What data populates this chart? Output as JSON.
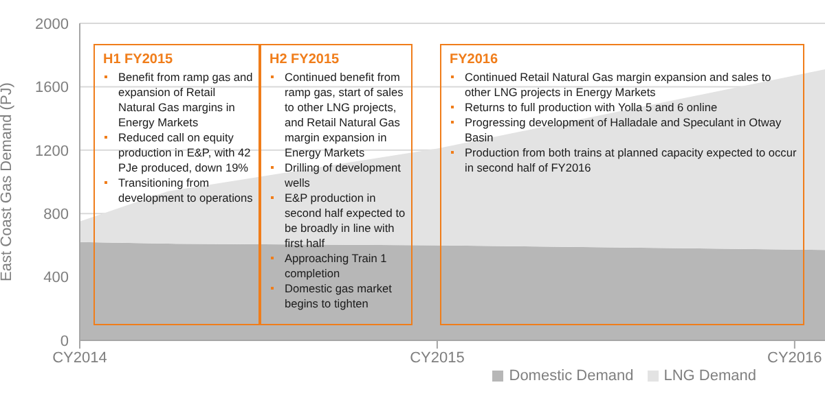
{
  "chart_data": {
    "type": "area",
    "stacked": true,
    "ylabel": "East Coast Gas Demand (PJ)",
    "x": [
      "2014-01",
      "2014-04",
      "2015-01",
      "2016-02"
    ],
    "xlim": [
      "2014-01",
      "2016-02"
    ],
    "xticks": [
      {
        "value": "2014-01",
        "label": "CY2014"
      },
      {
        "value": "2015-01",
        "label": "CY2015"
      },
      {
        "value": "2016-01",
        "label": "CY2016"
      }
    ],
    "ylim": [
      0,
      2000
    ],
    "yticks": [
      0,
      400,
      800,
      1200,
      1600,
      2000
    ],
    "series": [
      {
        "name": "Domestic Demand",
        "color": "#b7b7b7",
        "values": [
          620,
          610,
          600,
          570
        ]
      },
      {
        "name": "LNG Demand",
        "color": "#e3e3e3",
        "values": [
          130,
          330,
          610,
          1140
        ]
      }
    ],
    "grid": "y",
    "legend": "bottom right",
    "annotations": [
      "H1 FY2015\nBenefit from ramp gas and expansion of Retail Natural Gas margins in Energy Markets\nReduced call on equity production in E&P, with 42 PJe produced, down 19%\nTransitioning from development to operations",
      "H2 FY2015\nContinued benefit from ramp gas, start of sales to other LNG projects, and Retail Natural Gas margin expansion in Energy Markets\nDrilling of development wells\nE&P production in second half expected to be broadly in line with first half\nApproaching Train 1 completion\nDomestic gas market begins to tighten",
      "FY2016\nContinued Retail Natural Gas margin expansion and sales to other LNG projects in Energy Markets\nReturns to full production with Yolla 5 and 6 online\nProgressing development of Halladale and Speculant in Otway Basin\nProduction from both trains at planned capacity expected to occur in second half of FY2016"
    ]
  }
}
